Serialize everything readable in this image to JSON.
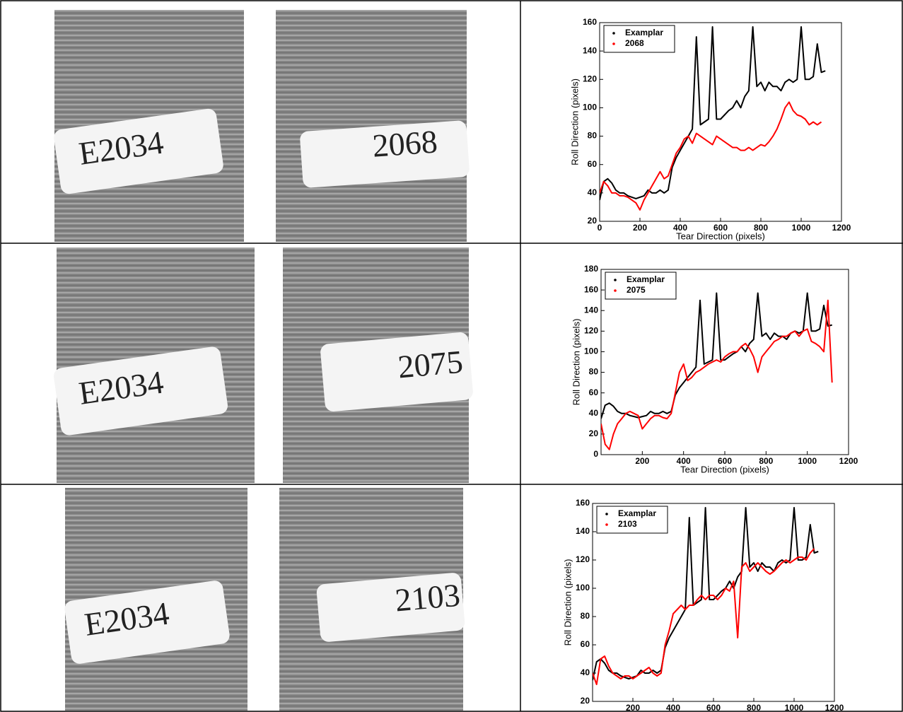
{
  "images": [
    {
      "left_label": "E2034",
      "right_label": "2068"
    },
    {
      "left_label": "E2034",
      "right_label": "2075"
    },
    {
      "left_label": "E2034",
      "right_label": "2103"
    }
  ],
  "chart_data": [
    {
      "type": "line",
      "xlabel": "Tear Direction (pixels)",
      "ylabel": "Roll Direction (pixels)",
      "x": [
        0,
        20,
        40,
        60,
        80,
        100,
        120,
        140,
        160,
        180,
        200,
        220,
        240,
        260,
        280,
        300,
        320,
        340,
        360,
        380,
        400,
        420,
        440,
        460,
        480,
        500,
        520,
        540,
        560,
        580,
        600,
        620,
        640,
        660,
        680,
        700,
        720,
        740,
        760,
        780,
        800,
        820,
        840,
        860,
        880,
        900,
        920,
        940,
        960,
        980,
        1000,
        1020,
        1040,
        1060,
        1080,
        1100,
        1120
      ],
      "xlim": [
        0,
        1200
      ],
      "xticks": [
        0,
        200,
        400,
        600,
        800,
        1000,
        1200
      ],
      "ylim": [
        20,
        160
      ],
      "yticks": [
        20,
        40,
        60,
        80,
        100,
        120,
        140,
        160
      ],
      "legend": "upper left",
      "series": [
        {
          "name": "Examplar",
          "color": "#000000",
          "values": [
            35,
            48,
            50,
            47,
            42,
            40,
            40,
            38,
            37,
            36,
            37,
            38,
            42,
            40,
            40,
            42,
            40,
            42,
            58,
            65,
            70,
            75,
            80,
            85,
            150,
            88,
            90,
            92,
            157,
            92,
            92,
            95,
            98,
            100,
            105,
            100,
            108,
            112,
            157,
            115,
            118,
            112,
            118,
            115,
            115,
            112,
            118,
            120,
            118,
            120,
            157,
            120,
            120,
            122,
            145,
            125,
            126
          ]
        },
        {
          "name": "2068",
          "color": "#ff0000",
          "values": [
            40,
            48,
            45,
            40,
            40,
            38,
            38,
            37,
            35,
            33,
            28,
            35,
            40,
            45,
            50,
            55,
            50,
            52,
            60,
            68,
            72,
            78,
            80,
            75,
            82,
            80,
            78,
            76,
            74,
            80,
            78,
            76,
            74,
            72,
            72,
            70,
            70,
            72,
            70,
            72,
            74,
            73,
            76,
            80,
            85,
            92,
            100,
            104,
            98,
            95,
            94,
            92,
            88,
            90,
            88,
            90,
            null
          ]
        }
      ]
    },
    {
      "type": "line",
      "xlabel": "Tear Direction (pixels)",
      "ylabel": "Roll Direction (pixels)",
      "x": [
        0,
        20,
        40,
        60,
        80,
        100,
        120,
        140,
        160,
        180,
        200,
        220,
        240,
        260,
        280,
        300,
        320,
        340,
        360,
        380,
        400,
        420,
        440,
        460,
        480,
        500,
        520,
        540,
        560,
        580,
        600,
        620,
        640,
        660,
        680,
        700,
        720,
        740,
        760,
        780,
        800,
        820,
        840,
        860,
        880,
        900,
        920,
        940,
        960,
        980,
        1000,
        1020,
        1040,
        1060,
        1080,
        1100,
        1120
      ],
      "xlim": [
        0,
        1200
      ],
      "xticks": [
        200,
        400,
        600,
        800,
        1000,
        1200
      ],
      "ylim": [
        0,
        180
      ],
      "yticks": [
        0,
        20,
        40,
        60,
        80,
        100,
        120,
        140,
        160,
        180
      ],
      "legend": "upper left",
      "series": [
        {
          "name": "Examplar",
          "color": "#000000",
          "values": [
            35,
            48,
            50,
            47,
            42,
            40,
            40,
            38,
            37,
            36,
            37,
            38,
            42,
            40,
            40,
            42,
            40,
            42,
            58,
            65,
            70,
            75,
            80,
            85,
            150,
            88,
            90,
            92,
            157,
            92,
            92,
            95,
            98,
            100,
            105,
            100,
            108,
            112,
            157,
            115,
            118,
            112,
            118,
            115,
            115,
            112,
            118,
            120,
            118,
            120,
            157,
            120,
            120,
            122,
            145,
            125,
            126
          ]
        },
        {
          "name": "2075",
          "color": "#ff0000",
          "values": [
            30,
            10,
            5,
            20,
            30,
            35,
            40,
            42,
            40,
            38,
            25,
            30,
            35,
            38,
            38,
            36,
            35,
            40,
            60,
            80,
            88,
            72,
            75,
            80,
            82,
            85,
            88,
            90,
            92,
            90,
            95,
            98,
            100,
            100,
            105,
            108,
            103,
            95,
            80,
            95,
            100,
            105,
            110,
            112,
            115,
            115,
            118,
            120,
            115,
            120,
            122,
            110,
            108,
            105,
            100,
            150,
            70
          ]
        }
      ]
    },
    {
      "type": "line",
      "xlabel": "Tear Direction (pixels)",
      "ylabel": "Roll Direction (pixels)",
      "x": [
        0,
        20,
        40,
        60,
        80,
        100,
        120,
        140,
        160,
        180,
        200,
        220,
        240,
        260,
        280,
        300,
        320,
        340,
        360,
        380,
        400,
        420,
        440,
        460,
        480,
        500,
        520,
        540,
        560,
        580,
        600,
        620,
        640,
        660,
        680,
        700,
        720,
        740,
        760,
        780,
        800,
        820,
        840,
        860,
        880,
        900,
        920,
        940,
        960,
        980,
        1000,
        1020,
        1040,
        1060,
        1080,
        1100,
        1120
      ],
      "xlim": [
        0,
        1200
      ],
      "xticks": [
        200,
        400,
        600,
        800,
        1000,
        1200
      ],
      "ylim": [
        20,
        160
      ],
      "yticks": [
        20,
        40,
        60,
        80,
        100,
        120,
        140,
        160
      ],
      "legend": "upper left",
      "series": [
        {
          "name": "Examplar",
          "color": "#000000",
          "values": [
            35,
            48,
            50,
            47,
            42,
            40,
            40,
            38,
            37,
            36,
            37,
            38,
            42,
            40,
            40,
            42,
            40,
            42,
            58,
            65,
            70,
            75,
            80,
            85,
            150,
            88,
            90,
            92,
            157,
            92,
            92,
            95,
            98,
            100,
            105,
            100,
            108,
            112,
            157,
            115,
            118,
            112,
            118,
            115,
            115,
            112,
            118,
            120,
            118,
            120,
            157,
            120,
            120,
            122,
            145,
            125,
            126
          ]
        },
        {
          "name": "2103",
          "color": "#ff0000",
          "values": [
            40,
            32,
            50,
            52,
            45,
            40,
            38,
            36,
            38,
            38,
            36,
            38,
            40,
            42,
            44,
            40,
            38,
            40,
            60,
            70,
            82,
            85,
            88,
            85,
            88,
            88,
            92,
            95,
            92,
            95,
            95,
            92,
            95,
            100,
            98,
            105,
            65,
            115,
            118,
            112,
            115,
            118,
            115,
            112,
            110,
            112,
            115,
            118,
            120,
            118,
            120,
            122,
            122,
            120,
            125,
            128,
            null
          ]
        }
      ]
    }
  ]
}
